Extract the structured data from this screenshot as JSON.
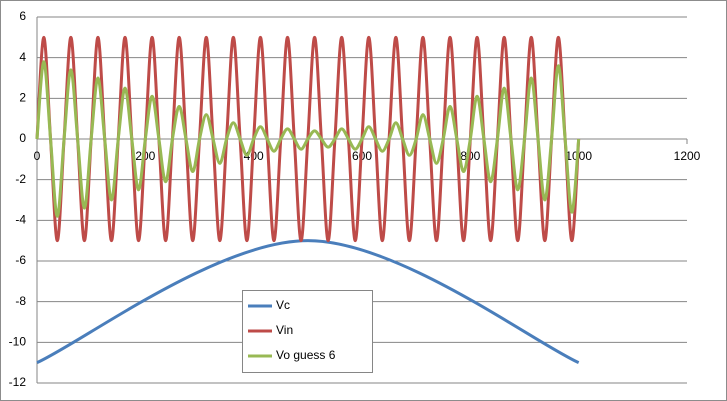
{
  "chart_data": {
    "type": "line",
    "smooth": true,
    "grid": true,
    "xlim": [
      0,
      1200
    ],
    "xticks": [
      0,
      200,
      400,
      600,
      800,
      1000,
      1200
    ],
    "ylim": [
      -12,
      6
    ],
    "yticks": [
      -12,
      -10,
      -8,
      -6,
      -4,
      -2,
      0,
      2,
      4,
      6
    ],
    "x": [
      0,
      12.5,
      25,
      37.5,
      50,
      62.5,
      75,
      87.5,
      100,
      112.5,
      125,
      137.5,
      150,
      162.5,
      175,
      187.5,
      200,
      212.5,
      225,
      237.5,
      250,
      262.5,
      275,
      287.5,
      300,
      312.5,
      325,
      337.5,
      350,
      362.5,
      375,
      387.5,
      400,
      412.5,
      425,
      437.5,
      450,
      462.5,
      475,
      487.5,
      500,
      512.5,
      525,
      537.5,
      550,
      562.5,
      575,
      587.5,
      600,
      612.5,
      625,
      637.5,
      650,
      662.5,
      675,
      687.5,
      700,
      712.5,
      725,
      737.5,
      750,
      762.5,
      775,
      787.5,
      800,
      812.5,
      825,
      837.5,
      850,
      862.5,
      875,
      887.5,
      900,
      912.5,
      925,
      937.5,
      950,
      962.5,
      975,
      987.5,
      1000
    ],
    "series": [
      {
        "name": "Vc",
        "color": "#4a7ebb",
        "x": [
          0,
          500,
          1000
        ],
        "values": [
          -11,
          -5,
          -11
        ]
      },
      {
        "name": "Vin",
        "color": "#be4b48",
        "values": [
          0,
          5,
          0,
          -5,
          0,
          5,
          0,
          -5,
          0,
          5,
          0,
          -5,
          0,
          5,
          0,
          -5,
          0,
          5,
          0,
          -5,
          0,
          5,
          0,
          -5,
          0,
          5,
          0,
          -5,
          0,
          5,
          0,
          -5,
          0,
          5,
          0,
          -5,
          0,
          5,
          0,
          -5,
          0,
          5,
          0,
          -5,
          0,
          5,
          0,
          -5,
          0,
          5,
          0,
          -5,
          0,
          5,
          0,
          -5,
          0,
          5,
          0,
          -5,
          0,
          5,
          0,
          -5,
          0,
          5,
          0,
          -5,
          0,
          5,
          0,
          -5,
          0,
          5,
          0,
          -5,
          0,
          5,
          0,
          -5,
          0
        ]
      },
      {
        "name": "Vo guess 6",
        "color": "#98b954",
        "values": [
          0,
          3.8,
          0,
          -3.8,
          0,
          3.4,
          0,
          -3.4,
          0,
          3.0,
          0,
          -3.0,
          0,
          2.5,
          0,
          -2.5,
          0,
          2.1,
          0,
          -2.1,
          0,
          1.6,
          0,
          -1.6,
          0,
          1.2,
          0,
          -1.2,
          0,
          0.8,
          0,
          -0.8,
          0,
          0.6,
          0,
          -0.6,
          0,
          0.5,
          0,
          -0.5,
          0,
          0.4,
          0,
          -0.4,
          0,
          0.5,
          0,
          -0.5,
          0,
          0.6,
          0,
          -0.6,
          0,
          0.8,
          0,
          -0.8,
          0,
          1.2,
          0,
          -1.2,
          0,
          1.6,
          0,
          -1.6,
          0,
          2.1,
          0,
          -2.1,
          0,
          2.5,
          0,
          -2.5,
          0,
          3.0,
          0,
          -3.0,
          0,
          3.6,
          0,
          -3.6,
          0
        ]
      }
    ]
  }
}
